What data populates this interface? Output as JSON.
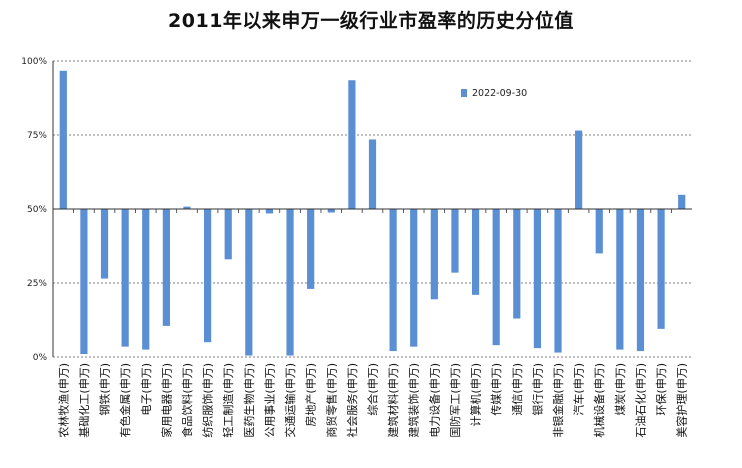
{
  "chart_data": {
    "type": "bar",
    "title": "2011年以来申万一级行业市盈率的历史分位值",
    "xlabel": "",
    "ylabel": "",
    "ylim": [
      0,
      1
    ],
    "baseline": 0.5,
    "y_ticks": [
      0,
      0.25,
      0.5,
      0.75,
      1
    ],
    "y_tick_labels": [
      "0%",
      "25%",
      "50%",
      "75%",
      "100%"
    ],
    "grid": true,
    "legend_position": "top-right",
    "bar_color": "#5b8fd4",
    "categories": [
      "农林牧渔(申万)",
      "基础化工(申万)",
      "钢铁(申万)",
      "有色金属(申万)",
      "电子(申万)",
      "家用电器(申万)",
      "食品饮料(申万)",
      "纺织服饰(申万)",
      "轻工制造(申万)",
      "医药生物(申万)",
      "公用事业(申万)",
      "交通运输(申万)",
      "房地产(申万)",
      "商贸零售(申万)",
      "社会服务(申万)",
      "综合(申万)",
      "建筑材料(申万)",
      "建筑装饰(申万)",
      "电力设备(申万)",
      "国防军工(申万)",
      "计算机(申万)",
      "传媒(申万)",
      "通信(申万)",
      "银行(申万)",
      "非银金融(申万)",
      "汽车(申万)",
      "机械设备(申万)",
      "煤炭(申万)",
      "石油石化(申万)",
      "环保(申万)",
      "美容护理(申万)"
    ],
    "series": [
      {
        "name": "2022-09-30",
        "values": [
          0.967,
          0.01,
          0.265,
          0.035,
          0.025,
          0.105,
          0.508,
          0.05,
          0.33,
          0.005,
          0.485,
          0.005,
          0.23,
          0.488,
          0.935,
          0.735,
          0.02,
          0.035,
          0.195,
          0.285,
          0.21,
          0.04,
          0.13,
          0.03,
          0.015,
          0.765,
          0.35,
          0.025,
          0.02,
          0.095,
          0.548
        ]
      }
    ]
  }
}
